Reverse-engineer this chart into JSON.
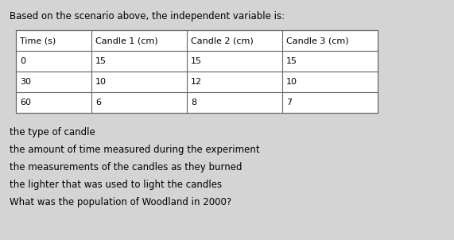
{
  "title": "Based on the scenario above, the independent variable is:",
  "table_headers": [
    "Time (s)",
    "Candle 1 (cm)",
    "Candle 2 (cm)",
    "Candle 3 (cm)"
  ],
  "table_rows": [
    [
      "0",
      "15",
      "15",
      "15"
    ],
    [
      "30",
      "10",
      "12",
      "10"
    ],
    [
      "60",
      "6",
      "8",
      "7"
    ]
  ],
  "answer_choices": [
    "the type of candle",
    "the amount of time measured during the experiment",
    "the measurements of the candles as they burned",
    "the lighter that was used to light the candles"
  ],
  "bottom_text": "What was the population of Woodland in 2000?",
  "bg_color": "#d4d4d4",
  "table_bg": "#ffffff",
  "text_color": "#000000",
  "title_fontsize": 8.5,
  "table_fontsize": 8.0,
  "answer_fontsize": 8.5
}
